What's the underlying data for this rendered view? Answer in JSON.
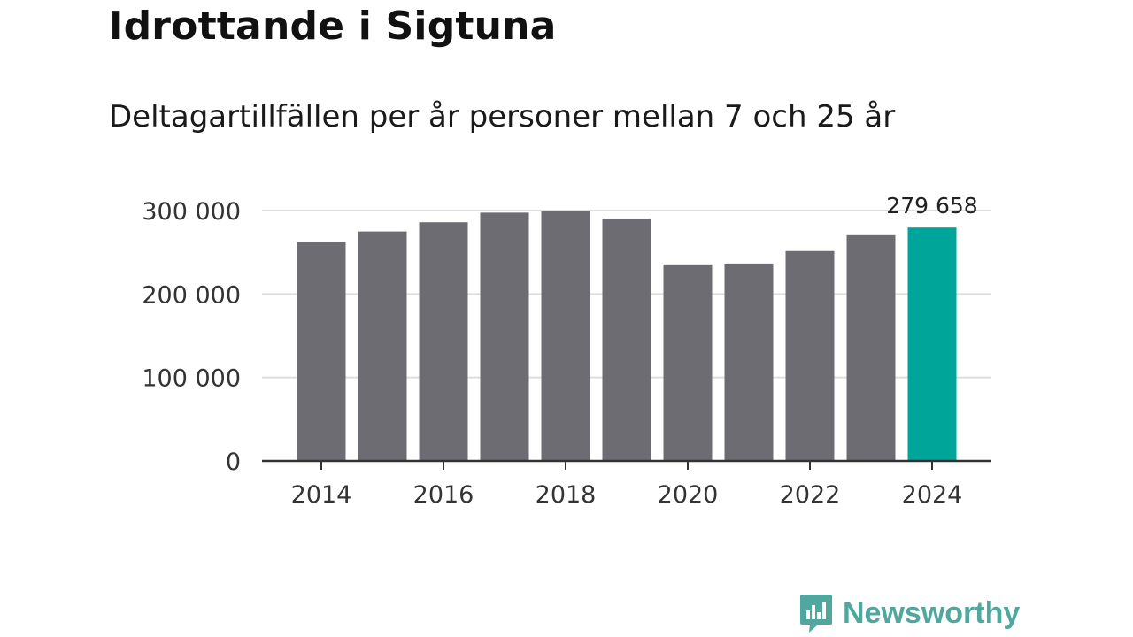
{
  "title": "Idrottande i Sigtuna",
  "subtitle": "Deltagartillfällen per år personer mellan 7 och 25 år",
  "chart_data": {
    "type": "bar",
    "categories": [
      "2014",
      "2015",
      "2016",
      "2017",
      "2018",
      "2019",
      "2020",
      "2021",
      "2022",
      "2023",
      "2024"
    ],
    "values": [
      262000,
      275000,
      286000,
      297500,
      299500,
      290500,
      235500,
      236500,
      251500,
      270500,
      279658
    ],
    "highlight_index": 10,
    "highlight_label": "279 658",
    "ylim": [
      0,
      300000
    ],
    "yticks": [
      0,
      100000,
      200000,
      300000
    ],
    "ytick_labels": [
      "0",
      "100 000",
      "200 000",
      "300 000"
    ],
    "xtick_labels": [
      "2014",
      "2016",
      "2018",
      "2020",
      "2022",
      "2024"
    ],
    "xlabel": "",
    "ylabel": "",
    "grid": true,
    "colors": {
      "bar": "#6d6c72",
      "highlight": "#00a59a",
      "grid": "#dddddd",
      "axis": "#333333"
    }
  },
  "logo": {
    "text": "Newsworthy",
    "color": "#4fa79e"
  }
}
